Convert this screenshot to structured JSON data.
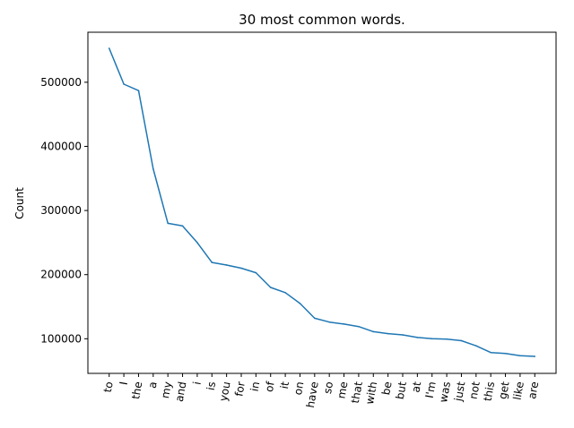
{
  "chart_data": {
    "type": "line",
    "title": "30 most common words.",
    "xlabel": "",
    "ylabel": "Count",
    "categories": [
      "to",
      "I",
      "the",
      "a",
      "my",
      "and",
      "i",
      "is",
      "you",
      "for",
      "in",
      "of",
      "it",
      "on",
      "have",
      "so",
      "me",
      "that",
      "with",
      "be",
      "but",
      "at",
      "I'm",
      "was",
      "just",
      "not",
      "this",
      "get",
      "like",
      "are"
    ],
    "values": [
      553000,
      497000,
      487000,
      365000,
      280000,
      276000,
      250000,
      219000,
      215000,
      210000,
      203000,
      180000,
      172000,
      155000,
      132000,
      126000,
      123000,
      119000,
      111000,
      108000,
      106000,
      102000,
      100000,
      99500,
      97000,
      89000,
      78500,
      77000,
      73500,
      72500
    ],
    "yticks": [
      100000,
      200000,
      300000,
      400000,
      500000
    ],
    "ylim": [
      46000,
      578000
    ],
    "xlim": [
      -1.45,
      30.45
    ],
    "color": "#1f77b4",
    "grid": false
  }
}
